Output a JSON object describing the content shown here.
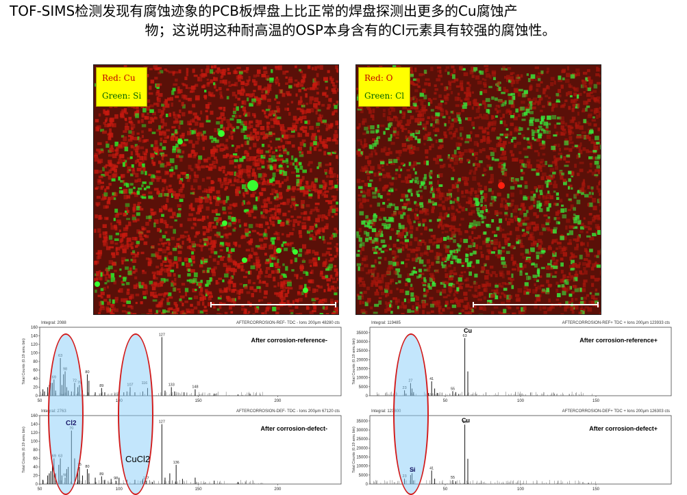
{
  "title": {
    "line1": "TOF-SIMS检测发现有腐蚀迹象的PCB板焊盘上比正常的焊盘探测出更多的Cu腐蚀产",
    "line2": "物；这说明这种耐高温的OSP本身含有的Cl元素具有较强的腐蚀性。"
  },
  "images": [
    {
      "legend_red": "Red: Cu",
      "legend_green": "Green: Si",
      "red_color": "#c81a10",
      "green_color": "#2ee82a"
    },
    {
      "legend_red": "Red: O",
      "legend_green": "Green: Cl",
      "red_color": "#a8160c",
      "green_color": "#38e83a"
    }
  ],
  "annotations": {
    "cl2": "Cl2",
    "cucl2": "CuCl2",
    "cu_top": "Cu",
    "cu_bottom": "Cu",
    "si": "Si"
  },
  "chart_data": [
    {
      "type": "bar",
      "title": "After corrosion-reference-",
      "integral": "Integral: 2088",
      "header_right": "AFTERCORROSION-REF- TDC - Ions 200μm 48280 cts",
      "ylabel": "Total Counts (0.19 amu bin)",
      "xlim": [
        50,
        240
      ],
      "ylim": [
        0,
        160
      ],
      "yticks": [
        0,
        20,
        40,
        60,
        80,
        100,
        120,
        140,
        160
      ],
      "xticks": [
        50,
        100,
        150,
        200
      ],
      "x": [
        52,
        53,
        55,
        56,
        57,
        58,
        59,
        60,
        63,
        64,
        65,
        66,
        67,
        68,
        70,
        72,
        74,
        75,
        77,
        80,
        81,
        85,
        89,
        91,
        100,
        103,
        105,
        107,
        110,
        115,
        118,
        121,
        127,
        129,
        133,
        135,
        141,
        148,
        160,
        175
      ],
      "values": [
        15,
        10,
        20,
        25,
        30,
        30,
        38,
        12,
        88,
        25,
        50,
        57,
        20,
        12,
        10,
        30,
        20,
        25,
        12,
        50,
        35,
        8,
        18,
        8,
        12,
        8,
        10,
        20,
        8,
        10,
        18,
        5,
        137,
        12,
        20,
        10,
        8,
        15,
        5,
        3
      ],
      "peak_labels": [
        [
          59,
          "69"
        ],
        [
          63,
          "63"
        ],
        [
          66,
          "98"
        ],
        [
          72,
          "72"
        ],
        [
          75,
          "75"
        ],
        [
          80,
          "80"
        ],
        [
          89,
          "89"
        ],
        [
          107,
          "107"
        ],
        [
          116,
          "116"
        ],
        [
          127,
          "127"
        ],
        [
          133,
          "133"
        ],
        [
          148,
          "148"
        ]
      ]
    },
    {
      "type": "bar",
      "title": "After corrosion-defect-",
      "integral": "Integral: 2763",
      "header_right": "AFTERCORROSION-DEF- TDC - Ions 200μm 67120 cts",
      "ylabel": "Total Counts (0.19 amu bin)",
      "xlim": [
        50,
        240
      ],
      "ylim": [
        0,
        160
      ],
      "yticks": [
        0,
        20,
        40,
        60,
        80,
        100,
        120,
        140,
        160
      ],
      "xticks": [
        50,
        100,
        150,
        200
      ],
      "x": [
        52,
        55,
        56,
        57,
        58,
        59,
        60,
        62,
        63,
        64,
        66,
        67,
        68,
        70,
        72,
        74,
        75,
        77,
        80,
        81,
        85,
        89,
        91,
        95,
        98,
        100,
        105,
        110,
        115,
        117,
        121,
        127,
        129,
        132,
        136,
        140,
        148,
        160,
        175
      ],
      "values": [
        10,
        20,
        25,
        30,
        50,
        60,
        25,
        45,
        60,
        20,
        15,
        35,
        40,
        125,
        60,
        35,
        40,
        20,
        35,
        25,
        15,
        18,
        10,
        12,
        8,
        15,
        10,
        10,
        12,
        8,
        5,
        140,
        15,
        25,
        45,
        12,
        15,
        8,
        5
      ],
      "peak_labels": [
        [
          59,
          "69"
        ],
        [
          63,
          "63"
        ],
        [
          66,
          "98"
        ],
        [
          70,
          "70"
        ],
        [
          75,
          "75"
        ],
        [
          80,
          "80"
        ],
        [
          89,
          "89"
        ],
        [
          98,
          "98"
        ],
        [
          117,
          "117"
        ],
        [
          127,
          "127"
        ],
        [
          136,
          "136"
        ]
      ]
    },
    {
      "type": "bar",
      "title": "After corrosion-reference+",
      "integral": "Integral: 119485",
      "header_right": "AFTERCORROSION-REF+ TDC + Ions 200μm 123933 cts",
      "ylabel": "Total Counts (0.19 amu bin)",
      "xlim": [
        0,
        200
      ],
      "ylim": [
        0,
        38000
      ],
      "yticks": [
        0,
        5000,
        10000,
        15000,
        20000,
        25000,
        30000,
        35000
      ],
      "xticks": [
        50,
        100,
        150
      ],
      "x": [
        23,
        24,
        27,
        28,
        29,
        39,
        41,
        43,
        45,
        55,
        57,
        59,
        63,
        65
      ],
      "values": [
        3000,
        1200,
        7000,
        4000,
        2000,
        1500,
        8000,
        4000,
        1500,
        2500,
        2000,
        1000,
        32000,
        13500
      ],
      "peak_labels": [
        [
          23,
          "23"
        ],
        [
          27,
          "27"
        ],
        [
          41,
          "41"
        ],
        [
          55,
          "55"
        ],
        [
          63,
          "63"
        ]
      ]
    },
    {
      "type": "bar",
      "title": "After corrosion-defect+",
      "integral": "Integral: 123800",
      "header_right": "AFTERCORROSION-DEF+ TDC + Ions 200μm 126303 cts",
      "ylabel": "Total Counts (0.19 amu bin)",
      "xlim": [
        0,
        200
      ],
      "ylim": [
        0,
        38000
      ],
      "yticks": [
        0,
        5000,
        10000,
        15000,
        20000,
        25000,
        30000,
        35000
      ],
      "xticks": [
        50,
        100,
        150
      ],
      "x": [
        23,
        27,
        28,
        29,
        41,
        43,
        55,
        57,
        63,
        65
      ],
      "values": [
        3000,
        5000,
        6000,
        2000,
        7500,
        3000,
        2200,
        1500,
        33000,
        14000
      ],
      "peak_labels": [
        [
          23,
          "23"
        ],
        [
          28,
          "28"
        ],
        [
          41,
          "41"
        ],
        [
          55,
          "55"
        ],
        [
          63,
          "63"
        ]
      ]
    }
  ]
}
